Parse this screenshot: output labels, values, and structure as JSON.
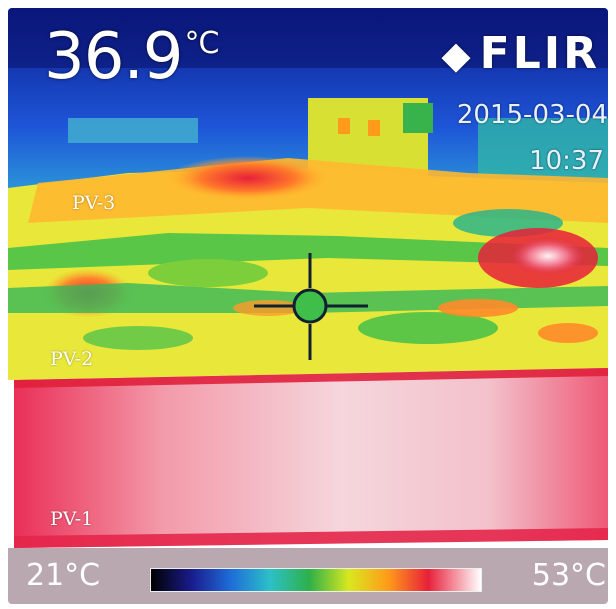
{
  "camera": {
    "temperature_value": "36.9",
    "temperature_unit": "°C",
    "brand": "FLIR",
    "date": "2015-03-04",
    "time": "10:37"
  },
  "labels": {
    "pv3": "PV-3",
    "pv2": "PV-2",
    "pv1": "PV-1"
  },
  "scale": {
    "min": "21°C",
    "max": "53°C"
  },
  "crosshair_icon": "crosshair-icon",
  "colors": {
    "sky": "#1a3bd0",
    "warm_panel": "#f04a6a",
    "hot_panel": "#f3d7dd",
    "green_zone": "#3fbf4a",
    "yellow_zone": "#e9e83a"
  }
}
